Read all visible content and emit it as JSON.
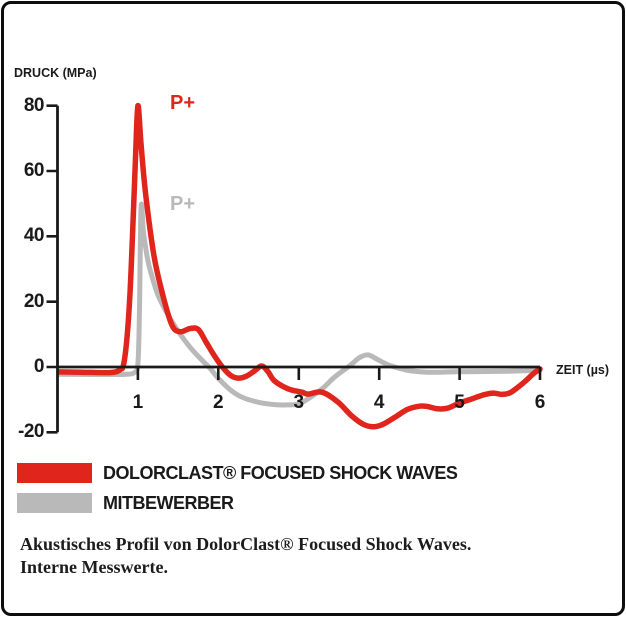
{
  "chart_data": {
    "type": "line",
    "title": "",
    "xlabel": "ZEIT (µs)",
    "ylabel": "DRUCK (MPa)",
    "xlim": [
      0,
      6
    ],
    "ylim": [
      -20,
      80
    ],
    "x_ticks": [
      1,
      2,
      3,
      4,
      5,
      6
    ],
    "y_ticks": [
      80,
      60,
      40,
      20,
      0,
      -20
    ],
    "grid": false,
    "axis_color": "#1a1a1a",
    "legend_position": "bottom-left",
    "annotations": [
      {
        "text": "P+",
        "color": "#e0251c",
        "series": "DOLORCLAST® FOCUSED SHOCK WAVES"
      },
      {
        "text": "P+",
        "color": "#b9b9b9",
        "series": "MITBEWERBER"
      }
    ],
    "series": [
      {
        "name": "MITBEWERBER",
        "color": "#b9b9b9",
        "peak_mpa": 50,
        "points": [
          [
            0.02,
            -2.2
          ],
          [
            0.4,
            -2.3
          ],
          [
            0.7,
            -2.3
          ],
          [
            0.85,
            -2.2
          ],
          [
            0.95,
            -1.8
          ],
          [
            1.0,
            1
          ],
          [
            1.02,
            18
          ],
          [
            1.04,
            49
          ],
          [
            1.07,
            41
          ],
          [
            1.12,
            33
          ],
          [
            1.16,
            29
          ],
          [
            1.25,
            22
          ],
          [
            1.35,
            17
          ],
          [
            1.5,
            11
          ],
          [
            1.65,
            6
          ],
          [
            1.8,
            2
          ],
          [
            1.9,
            -0.5
          ],
          [
            2.0,
            -3.5
          ],
          [
            2.15,
            -7
          ],
          [
            2.3,
            -9.3
          ],
          [
            2.5,
            -10.8
          ],
          [
            2.7,
            -11.5
          ],
          [
            2.85,
            -11.6
          ],
          [
            3.0,
            -11.3
          ],
          [
            3.16,
            -9
          ],
          [
            3.3,
            -6.5
          ],
          [
            3.45,
            -3
          ],
          [
            3.64,
            0.5
          ],
          [
            3.75,
            2.8
          ],
          [
            3.86,
            3.7
          ],
          [
            3.98,
            2.3
          ],
          [
            4.1,
            0.8
          ],
          [
            4.25,
            -0.4
          ],
          [
            4.4,
            -1.2
          ],
          [
            4.6,
            -1.6
          ],
          [
            4.9,
            -1.5
          ],
          [
            5.2,
            -1.4
          ],
          [
            5.6,
            -1.3
          ],
          [
            6.0,
            -1
          ]
        ]
      },
      {
        "name": "DOLORCLAST® FOCUSED SHOCK WAVES",
        "color": "#e0251c",
        "peak_mpa": 80,
        "points": [
          [
            0.02,
            -1.5
          ],
          [
            0.3,
            -1.6
          ],
          [
            0.6,
            -1.7
          ],
          [
            0.72,
            -1.5
          ],
          [
            0.78,
            -0.8
          ],
          [
            0.82,
            0.5
          ],
          [
            0.86,
            8
          ],
          [
            0.9,
            22
          ],
          [
            0.94,
            45
          ],
          [
            0.97,
            64
          ],
          [
            1.0,
            80
          ],
          [
            1.04,
            68
          ],
          [
            1.1,
            52
          ],
          [
            1.2,
            34
          ],
          [
            1.3,
            23
          ],
          [
            1.42,
            13
          ],
          [
            1.52,
            10.8
          ],
          [
            1.65,
            11.8
          ],
          [
            1.75,
            11.5
          ],
          [
            1.85,
            7.5
          ],
          [
            1.95,
            3.5
          ],
          [
            2.05,
            0
          ],
          [
            2.15,
            -2.5
          ],
          [
            2.25,
            -3.4
          ],
          [
            2.35,
            -2.8
          ],
          [
            2.45,
            -1.2
          ],
          [
            2.54,
            0.3
          ],
          [
            2.62,
            -1.5
          ],
          [
            2.7,
            -4.3
          ],
          [
            2.87,
            -6.7
          ],
          [
            3.04,
            -7.7
          ],
          [
            3.12,
            -8.3
          ],
          [
            3.29,
            -7.7
          ],
          [
            3.49,
            -10.8
          ],
          [
            3.66,
            -15
          ],
          [
            3.8,
            -17.5
          ],
          [
            3.93,
            -18.3
          ],
          [
            4.05,
            -17.5
          ],
          [
            4.2,
            -15.3
          ],
          [
            4.35,
            -13
          ],
          [
            4.5,
            -12
          ],
          [
            4.6,
            -12.1
          ],
          [
            4.72,
            -12.8
          ],
          [
            4.85,
            -12.6
          ],
          [
            5.0,
            -11
          ],
          [
            5.15,
            -9.8
          ],
          [
            5.3,
            -8.5
          ],
          [
            5.42,
            -8
          ],
          [
            5.52,
            -8.4
          ],
          [
            5.62,
            -8
          ],
          [
            5.72,
            -6.3
          ],
          [
            5.82,
            -4.3
          ],
          [
            5.92,
            -2
          ],
          [
            6.0,
            -0.6
          ]
        ]
      }
    ]
  },
  "legend": {
    "items": [
      {
        "label": "DOLORCLAST® FOCUSED SHOCK WAVES",
        "color": "#e0251c"
      },
      {
        "label": "MITBEWERBER",
        "color": "#b9b9b9"
      }
    ]
  },
  "caption": {
    "line1": "Akustisches Profil von DolorClast® Focused Shock Waves.",
    "line2": "Interne Messwerte."
  }
}
